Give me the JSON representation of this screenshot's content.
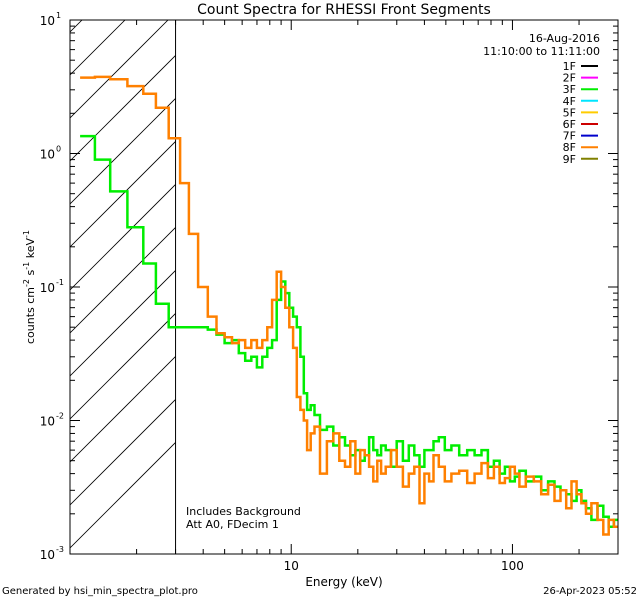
{
  "chart_data": {
    "type": "line",
    "title": "Count Spectra for RHESSI Front Segments",
    "xlabel": "Energy (keV)",
    "ylabel_parts": [
      "counts cm",
      "-2",
      " s",
      "-1",
      " keV",
      "-1"
    ],
    "xscale": "log",
    "yscale": "log",
    "xlim": [
      1,
      300
    ],
    "ylim": [
      0.001,
      10
    ],
    "x_tick_labels": [
      {
        "value": 10,
        "label": "10"
      },
      {
        "value": 100,
        "label": "100"
      }
    ],
    "y_tick_labels": [
      {
        "value": 10,
        "base": "10",
        "exp": "1"
      },
      {
        "value": 1,
        "base": "10",
        "exp": "0"
      },
      {
        "value": 0.1,
        "base": "10",
        "exp": "-1"
      },
      {
        "value": 0.01,
        "base": "10",
        "exp": "-2"
      },
      {
        "value": 0.001,
        "base": "10",
        "exp": "-3"
      }
    ],
    "hatched_region": {
      "xmin": 1,
      "xmax": 3
    },
    "annotation_lines": [
      "Includes Background",
      "Att A0, FDecim 1"
    ],
    "date": "16-Aug-2016",
    "time_range": "11:10:00 to 11:11:00",
    "legend": [
      {
        "label": "1F",
        "color": "#000000"
      },
      {
        "label": "2F",
        "color": "#ff00ff"
      },
      {
        "label": "3F",
        "color": "#00ee00"
      },
      {
        "label": "4F",
        "color": "#00e5ff"
      },
      {
        "label": "5F",
        "color": "#ffcc00"
      },
      {
        "label": "6F",
        "color": "#cc0000"
      },
      {
        "label": "7F",
        "color": "#0000cc"
      },
      {
        "label": "8F",
        "color": "#ff8000"
      },
      {
        "label": "9F",
        "color": "#808000"
      }
    ],
    "series": [
      {
        "name": "3F",
        "color": "#00ee00",
        "x": [
          1.2,
          1.4,
          1.65,
          2.0,
          2.3,
          2.6,
          3.0,
          3.3,
          3.6,
          4.0,
          4.4,
          4.8,
          5.2,
          5.6,
          6.0,
          6.4,
          6.8,
          7.2,
          7.6,
          8.0,
          8.4,
          8.8,
          9.2,
          9.6,
          10.0,
          10.4,
          10.8,
          11.2,
          11.6,
          12.0,
          12.5,
          13.0,
          14.0,
          15.0,
          16.0,
          17.0,
          18.0,
          19.0,
          20.0,
          21.0,
          22.0,
          23.0,
          24.0,
          25.0,
          26.0,
          27.5,
          29.0,
          31.0,
          33.0,
          35.0,
          37.0,
          39.0,
          41.0,
          43.0,
          45.0,
          48.0,
          51.0,
          55.0,
          60.0,
          65.0,
          70.0,
          75.0,
          80.0,
          85.0,
          90.0,
          95.0,
          100.0,
          105.0,
          110.0,
          120.0,
          130.0,
          140.0,
          150.0,
          160.0,
          170.0,
          180.0,
          190.0,
          200.0,
          210.0,
          220.0,
          235.0,
          250.0,
          265.0,
          280.0,
          295.0
        ],
        "y": [
          1.35,
          0.9,
          0.52,
          0.28,
          0.15,
          0.075,
          0.05,
          0.05,
          0.05,
          0.05,
          0.048,
          0.044,
          0.038,
          0.04,
          0.032,
          0.028,
          0.03,
          0.025,
          0.03,
          0.035,
          0.04,
          0.08,
          0.11,
          0.09,
          0.07,
          0.06,
          0.05,
          0.03,
          0.016,
          0.012,
          0.013,
          0.011,
          0.0085,
          0.009,
          0.0065,
          0.0075,
          0.0065,
          0.0055,
          0.006,
          0.005,
          0.0055,
          0.0075,
          0.006,
          0.0055,
          0.0065,
          0.006,
          0.0045,
          0.007,
          0.005,
          0.0065,
          0.0055,
          0.0045,
          0.006,
          0.006,
          0.007,
          0.0075,
          0.006,
          0.0065,
          0.0055,
          0.006,
          0.0055,
          0.006,
          0.0045,
          0.005,
          0.004,
          0.0045,
          0.0035,
          0.0038,
          0.0042,
          0.0035,
          0.0038,
          0.003,
          0.0035,
          0.0032,
          0.003,
          0.0028,
          0.0025,
          0.003,
          0.0025,
          0.0022,
          0.0018,
          0.0023,
          0.0019,
          0.0016,
          0.0018
        ]
      },
      {
        "name": "8F",
        "color": "#ff8000",
        "x": [
          1.2,
          1.4,
          1.65,
          2.0,
          2.3,
          2.6,
          3.0,
          3.3,
          3.6,
          4.0,
          4.4,
          4.8,
          5.2,
          5.6,
          6.0,
          6.4,
          6.8,
          7.2,
          7.6,
          8.0,
          8.4,
          8.8,
          9.2,
          9.6,
          10.0,
          10.4,
          10.8,
          11.2,
          11.6,
          12.0,
          12.5,
          13.0,
          14.0,
          15.0,
          16.0,
          17.0,
          18.0,
          19.0,
          20.0,
          21.0,
          22.0,
          23.0,
          24.0,
          25.0,
          26.0,
          27.5,
          29.0,
          31.0,
          33.0,
          35.0,
          37.0,
          39.0,
          41.0,
          43.0,
          45.0,
          48.0,
          51.0,
          55.0,
          60.0,
          65.0,
          70.0,
          75.0,
          80.0,
          85.0,
          90.0,
          95.0,
          100.0,
          105.0,
          110.0,
          120.0,
          130.0,
          140.0,
          150.0,
          160.0,
          170.0,
          180.0,
          190.0,
          200.0,
          210.0,
          220.0,
          235.0,
          250.0,
          265.0,
          280.0,
          295.0
        ],
        "y": [
          3.7,
          3.75,
          3.6,
          3.2,
          2.8,
          2.2,
          1.3,
          0.6,
          0.25,
          0.1,
          0.06,
          0.045,
          0.042,
          0.038,
          0.04,
          0.035,
          0.04,
          0.035,
          0.04,
          0.05,
          0.08,
          0.13,
          0.1,
          0.07,
          0.05,
          0.035,
          0.015,
          0.012,
          0.01,
          0.006,
          0.008,
          0.009,
          0.004,
          0.007,
          0.008,
          0.005,
          0.0045,
          0.007,
          0.004,
          0.006,
          0.0055,
          0.0045,
          0.0035,
          0.005,
          0.004,
          0.0045,
          0.006,
          0.0045,
          0.0032,
          0.004,
          0.0045,
          0.0024,
          0.004,
          0.0035,
          0.0055,
          0.0045,
          0.0035,
          0.004,
          0.0042,
          0.0034,
          0.004,
          0.0048,
          0.0037,
          0.0045,
          0.0034,
          0.0037,
          0.0045,
          0.004,
          0.0032,
          0.0038,
          0.0035,
          0.0028,
          0.0033,
          0.0025,
          0.003,
          0.0022,
          0.0035,
          0.0028,
          0.0024,
          0.002,
          0.0024,
          0.0018,
          0.0014,
          0.0018,
          0.0016
        ]
      }
    ]
  },
  "footer": {
    "generated_by": "Generated by hsi_min_spectra_plot.pro",
    "timestamp": "26-Apr-2023 05:52"
  }
}
